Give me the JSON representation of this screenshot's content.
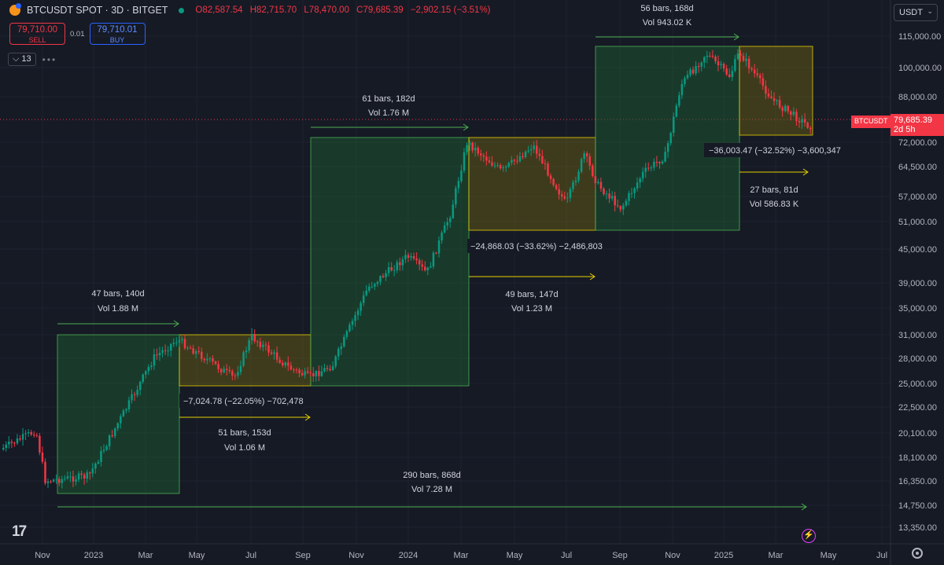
{
  "header": {
    "symbol": "BTCUSDT SPOT · 3D · BITGET",
    "open": "O82,587.54",
    "high": "H82,715.70",
    "low": "L78,470.00",
    "close": "C79,685.39",
    "change": "−2,902.15 (−3.51%)"
  },
  "trade": {
    "sell_price": "79,710.00",
    "sell_label": "SELL",
    "spread": "0.01",
    "buy_price": "79,710.01",
    "buy_label": "BUY"
  },
  "indicators": {
    "count": "13"
  },
  "currency": "USDT",
  "price_scale": {
    "labels": [
      "115,000.00",
      "100,000.00",
      "88,000.00",
      "72,000.00",
      "64,500.00",
      "57,000.00",
      "51,000.00",
      "45,000.00",
      "39,000.00",
      "35,000.00",
      "31,000.00",
      "28,000.00",
      "25,000.00",
      "22,500.00",
      "20,100.00",
      "18,100.00",
      "16,350.00",
      "14,750.00",
      "13,350.00"
    ]
  },
  "last_price": {
    "symbol": "BTCUSDT",
    "value": "79,685.39",
    "countdown": "2d 5h"
  },
  "time_axis": [
    "Nov",
    "2023",
    "Mar",
    "May",
    "Jul",
    "Sep",
    "Nov",
    "2024",
    "Mar",
    "May",
    "Jul",
    "Sep",
    "Nov",
    "2025",
    "Mar",
    "May",
    "Jul"
  ],
  "measurements": {
    "up1": {
      "line1": "47 bars, 140d",
      "line2": "Vol 1.88 M"
    },
    "down1": {
      "line1": "−7,024.78 (−22.05%) −702,478",
      "line2": "51 bars, 153d",
      "line3": "Vol 1.06 M"
    },
    "up2": {
      "line1": "61 bars, 182d",
      "line2": "Vol 1.76 M"
    },
    "down2": {
      "line1": "−24,868.03 (−33.62%) −2,486,803",
      "line2": "49 bars, 147d",
      "line3": "Vol 1.23 M"
    },
    "up3": {
      "line1": "56 bars, 168d",
      "line2": "Vol 943.02 K"
    },
    "down3": {
      "line1": "−36,003.47 (−32.52%) −3,600,347",
      "line2": "27 bars, 81d",
      "line3": "Vol 586.83 K"
    },
    "total": {
      "line1": "290 bars, 868d",
      "line2": "Vol 7.28 M"
    }
  },
  "colors": {
    "up": "#089981",
    "down": "#f23645",
    "bg": "#161a25",
    "grid": "#232632",
    "up_box": "#1e5631",
    "down_box": "#c9b900"
  },
  "chart_data": {
    "type": "candlestick",
    "price_anchors": [
      [
        115000,
        46
      ],
      [
        100000,
        86
      ],
      [
        88000,
        123
      ],
      [
        72000,
        181
      ],
      [
        64500,
        212
      ],
      [
        57000,
        250
      ],
      [
        51000,
        282
      ],
      [
        45000,
        317
      ],
      [
        39000,
        360
      ],
      [
        35000,
        392
      ],
      [
        31000,
        426
      ],
      [
        28000,
        456
      ],
      [
        25000,
        488
      ],
      [
        22500,
        518
      ],
      [
        20100,
        551
      ],
      [
        18100,
        582
      ],
      [
        16350,
        612
      ],
      [
        14750,
        643
      ],
      [
        13350,
        671
      ]
    ],
    "path": [
      [
        3,
        572,
        19800
      ],
      [
        48,
        548,
        21800
      ],
      [
        60,
        612,
        16300
      ],
      [
        115,
        606,
        16900
      ],
      [
        178,
        492,
        24300
      ],
      [
        198,
        455,
        27800
      ],
      [
        228,
        432,
        30200
      ],
      [
        300,
        481,
        26200
      ],
      [
        322,
        428,
        30700
      ],
      [
        370,
        468,
        27000
      ],
      [
        395,
        480,
        25700
      ],
      [
        425,
        465,
        27400
      ],
      [
        470,
        366,
        38000
      ],
      [
        520,
        326,
        43500
      ],
      [
        545,
        347,
        41000
      ],
      [
        575,
        272,
        52000
      ],
      [
        596,
        181,
        72000
      ],
      [
        640,
        218,
        64000
      ],
      [
        680,
        185,
        70500
      ],
      [
        722,
        260,
        55500
      ],
      [
        745,
        196,
        68500
      ],
      [
        762,
        235,
        60000
      ],
      [
        792,
        265,
        53500
      ],
      [
        820,
        220,
        62000
      ],
      [
        848,
        198,
        67500
      ],
      [
        868,
        108,
        93000
      ],
      [
        900,
        68,
        106000
      ],
      [
        930,
        97,
        98000
      ],
      [
        942,
        66,
        107000
      ],
      [
        985,
        128,
        85500
      ],
      [
        1030,
        160,
        77000
      ]
    ]
  }
}
